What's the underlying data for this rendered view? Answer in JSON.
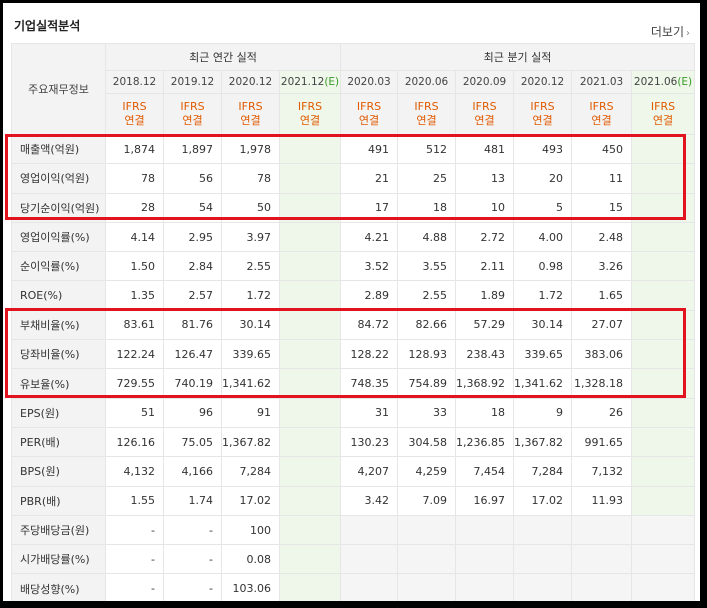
{
  "section_title": "기업실적분석",
  "more_link": "더보기",
  "more_arrow": "›",
  "header": {
    "row_label": "주요재무정보",
    "annual_group": "최근 연간 실적",
    "quarter_group": "최근 분기 실적",
    "annual_dates": [
      "2018.12",
      "2019.12",
      "2020.12",
      "2021.12"
    ],
    "quarter_dates": [
      "2020.03",
      "2020.06",
      "2020.09",
      "2020.12",
      "2021.03",
      "2021.06"
    ],
    "estimate_mark": "(E)",
    "ifrs_top": "IFRS",
    "ifrs_bottom": "연결"
  },
  "rows": [
    {
      "label": "매출액(억원)",
      "annual": [
        "1,874",
        "1,897",
        "1,978",
        ""
      ],
      "quarter": [
        "491",
        "512",
        "481",
        "493",
        "450",
        ""
      ]
    },
    {
      "label": "영업이익(억원)",
      "annual": [
        "78",
        "56",
        "78",
        ""
      ],
      "quarter": [
        "21",
        "25",
        "13",
        "20",
        "11",
        ""
      ]
    },
    {
      "label": "당기순이익(억원)",
      "annual": [
        "28",
        "54",
        "50",
        ""
      ],
      "quarter": [
        "17",
        "18",
        "10",
        "5",
        "15",
        ""
      ]
    },
    {
      "label": "영업이익률(%)",
      "annual": [
        "4.14",
        "2.95",
        "3.97",
        ""
      ],
      "quarter": [
        "4.21",
        "4.88",
        "2.72",
        "4.00",
        "2.48",
        ""
      ]
    },
    {
      "label": "순이익률(%)",
      "annual": [
        "1.50",
        "2.84",
        "2.55",
        ""
      ],
      "quarter": [
        "3.52",
        "3.55",
        "2.11",
        "0.98",
        "3.26",
        ""
      ]
    },
    {
      "label": "ROE(%)",
      "annual": [
        "1.35",
        "2.57",
        "1.72",
        ""
      ],
      "quarter": [
        "2.89",
        "2.55",
        "1.89",
        "1.72",
        "1.65",
        ""
      ]
    },
    {
      "label": "부채비율(%)",
      "annual": [
        "83.61",
        "81.76",
        "30.14",
        ""
      ],
      "quarter": [
        "84.72",
        "82.66",
        "57.29",
        "30.14",
        "27.07",
        ""
      ]
    },
    {
      "label": "당좌비율(%)",
      "annual": [
        "122.24",
        "126.47",
        "339.65",
        ""
      ],
      "quarter": [
        "128.22",
        "128.93",
        "238.43",
        "339.65",
        "383.06",
        ""
      ]
    },
    {
      "label": "유보율(%)",
      "annual": [
        "729.55",
        "740.19",
        "1,341.62",
        ""
      ],
      "quarter": [
        "748.35",
        "754.89",
        "1,368.92",
        "1,341.62",
        "1,328.18",
        ""
      ]
    },
    {
      "label": "EPS(원)",
      "annual": [
        "51",
        "96",
        "91",
        ""
      ],
      "quarter": [
        "31",
        "33",
        "18",
        "9",
        "26",
        ""
      ]
    },
    {
      "label": "PER(배)",
      "annual": [
        "126.16",
        "75.05",
        "1,367.82",
        ""
      ],
      "quarter": [
        "130.23",
        "304.58",
        "1,236.85",
        "1,367.82",
        "991.65",
        ""
      ]
    },
    {
      "label": "BPS(원)",
      "annual": [
        "4,132",
        "4,166",
        "7,284",
        ""
      ],
      "quarter": [
        "4,207",
        "4,259",
        "7,454",
        "7,284",
        "7,132",
        ""
      ]
    },
    {
      "label": "PBR(배)",
      "annual": [
        "1.55",
        "1.74",
        "17.02",
        ""
      ],
      "quarter": [
        "3.42",
        "7.09",
        "16.97",
        "17.02",
        "11.93",
        ""
      ]
    },
    {
      "label": "주당배당금(원)",
      "annual": [
        "-",
        "-",
        "100",
        ""
      ],
      "quarter": [
        "",
        "",
        "",
        "",
        "",
        ""
      ],
      "quarter_blank": true
    },
    {
      "label": "시가배당률(%)",
      "annual": [
        "-",
        "-",
        "0.08",
        ""
      ],
      "quarter": [
        "",
        "",
        "",
        "",
        "",
        ""
      ],
      "quarter_blank": true
    },
    {
      "label": "배당성향(%)",
      "annual": [
        "-",
        "-",
        "103.06",
        ""
      ],
      "quarter": [
        "",
        "",
        "",
        "",
        "",
        ""
      ],
      "quarter_blank": true
    }
  ],
  "colors": {
    "highlight_box": "#e0131e",
    "ifrs_text": "#e05a00",
    "estimate_bg": "#eef7ea"
  }
}
